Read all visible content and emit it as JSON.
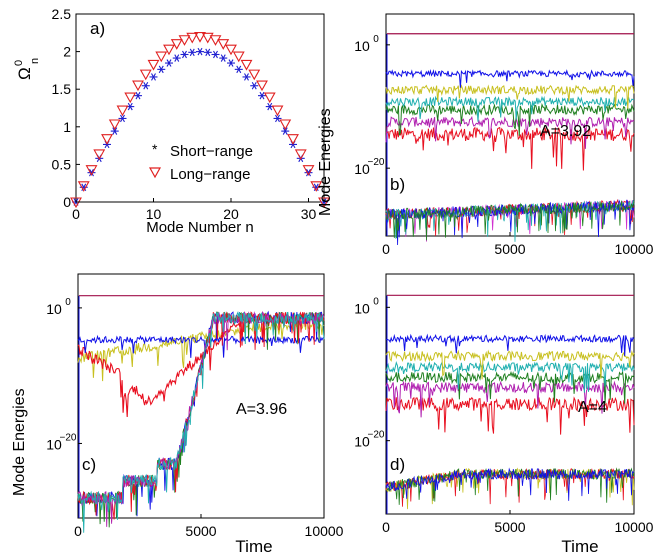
{
  "chart_data": [
    {
      "panel_label": "a)",
      "type": "scatter",
      "xlabel": "Mode Number   n",
      "ylabel": "Ω",
      "ylabel_sup": "0",
      "ylabel_sub": "n",
      "xlim": [
        0,
        32
      ],
      "ylim": [
        0,
        2.5
      ],
      "xticks": [
        "0",
        "10",
        "20",
        "30"
      ],
      "xtick_values": [
        0,
        10,
        20,
        30
      ],
      "yticks": [
        "0",
        "0.5",
        "1",
        "1.5",
        "2",
        "2.5"
      ],
      "ytick_values": [
        0,
        0.5,
        1,
        1.5,
        2,
        2.5
      ],
      "legend_position": "lower-right",
      "series": [
        {
          "name": "Short−range",
          "marker": "asterisk",
          "color": "#1f1fd0",
          "x_range": [
            0,
            32
          ],
          "peak": 2.0
        },
        {
          "name": "Long−range",
          "marker": "triangle-down",
          "color": "#e02020",
          "x_range": [
            0,
            32
          ],
          "peak": 2.2
        }
      ]
    },
    {
      "panel_label": "b)",
      "type": "line",
      "annotation": "A=3.92",
      "xlabel": "",
      "ylabel": "Mode  Energies",
      "xlim": [
        0,
        10000
      ],
      "xticks": [
        "0",
        "5000",
        "10000"
      ],
      "xtick_values": [
        0,
        5000,
        10000
      ],
      "yticks": [
        "10",
        "10"
      ],
      "ytick_exps": [
        "0",
        "−20"
      ],
      "ytick_log10": [
        0,
        -20
      ],
      "ylim_log10": [
        -31,
        5
      ],
      "levels_log10": {
        "top_line": 1.8,
        "blue": -4.7,
        "yellow": -7.3,
        "cyan": -9.2,
        "green": -10.5,
        "magenta": -12.5,
        "red": -14.5,
        "noise_start": -27.5,
        "noise_end": -26.0
      }
    },
    {
      "panel_label": "c)",
      "type": "line",
      "annotation": "A=3.96",
      "xlabel": "Time",
      "ylabel": "Mode  Energies",
      "xlim": [
        0,
        10000
      ],
      "xticks": [
        "0",
        "5000",
        "10000"
      ],
      "xtick_values": [
        0,
        5000,
        10000
      ],
      "yticks": [
        "10",
        "10"
      ],
      "ytick_exps": [
        "0",
        "−20"
      ],
      "ytick_log10": [
        0,
        -20
      ],
      "ylim_log10": [
        -31,
        5
      ],
      "levels_log10": {
        "top_line": 1.8,
        "blue": -4.7,
        "yellow": -7.5,
        "red_dip": -14.0,
        "noise_start": -28.0,
        "step_1": -25.5,
        "step_2": -23.0,
        "rise_end": -1.5
      },
      "rise_time": [
        4000,
        5500
      ]
    },
    {
      "panel_label": "d)",
      "type": "line",
      "annotation": "A=4",
      "xlabel": "Time",
      "ylabel": "",
      "xlim": [
        0,
        10000
      ],
      "xticks": [
        "0",
        "5000",
        "10000"
      ],
      "xtick_values": [
        0,
        5000,
        10000
      ],
      "yticks": [
        "10",
        "10"
      ],
      "ytick_exps": [
        "0",
        "−20"
      ],
      "ytick_log10": [
        0,
        -20
      ],
      "ylim_log10": [
        -31,
        5
      ],
      "levels_log10": {
        "top_line": 1.8,
        "blue": -4.7,
        "yellow": -7.3,
        "cyan": -9.0,
        "green": -10.5,
        "magenta": -12.0,
        "red": -14.5,
        "noise_start": -27.0,
        "noise_end": -25.0
      }
    }
  ],
  "colors": {
    "blue": "#1010e8",
    "yellow": "#c8c020",
    "cyan": "#20b0b0",
    "green": "#208020",
    "magenta": "#b020b0",
    "red": "#e81020",
    "top_line": "#a0104a"
  }
}
